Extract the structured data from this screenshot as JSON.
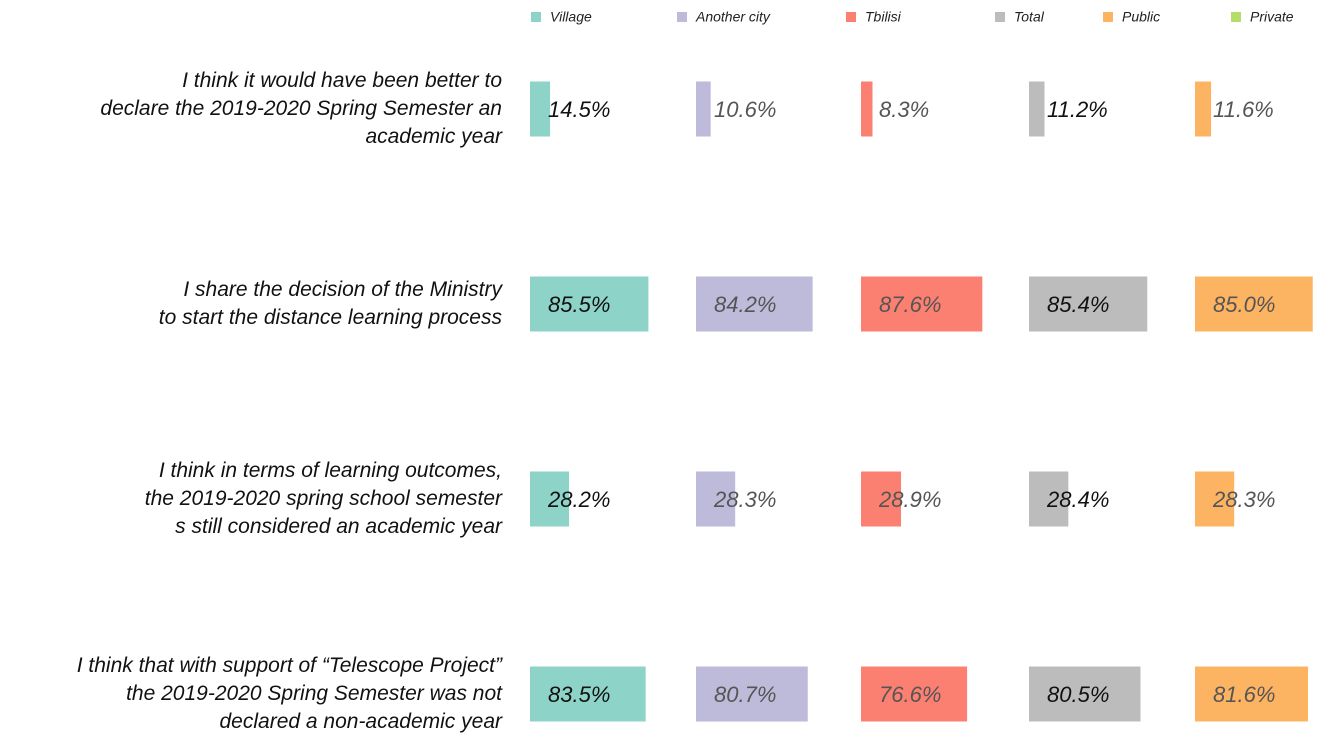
{
  "chart_data": {
    "type": "bar",
    "categories": [
      "I think it would have been better to\ndeclare the 2019-2020 Spring Semester an\nacademic year",
      "I share the decision of the Ministry\nto start the distance learning process",
      "I think in terms of learning outcomes,\nthe 2019-2020 spring school semester\ns still considered an academic year",
      "I think that with support of “Telescope Project”\nthe 2019-2020 Spring Semester was not\ndeclared a non-academic year"
    ],
    "series": [
      {
        "name": "Village",
        "color": "#8dd3c7",
        "values": [
          14.5,
          85.5,
          28.2,
          83.5
        ],
        "value_labels": [
          "14.5%",
          "85.5%",
          "28.2%",
          "83.5%"
        ]
      },
      {
        "name": "Another city",
        "color": "#bebada",
        "values": [
          10.6,
          84.2,
          28.3,
          80.7
        ],
        "value_labels": [
          "10.6%",
          "84.2%",
          "28.3%",
          "80.7%"
        ]
      },
      {
        "name": "Tbilisi",
        "color": "#fb8072",
        "values": [
          8.3,
          87.6,
          28.9,
          76.6
        ],
        "value_labels": [
          "8.3%",
          "87.6%",
          "28.9%",
          "76.6%"
        ]
      },
      {
        "name": "Total",
        "color": "#bcbcbc",
        "values": [
          11.2,
          85.4,
          28.4,
          80.5
        ],
        "value_labels": [
          "11.2%",
          "85.4%",
          "28.4%",
          "80.5%"
        ]
      },
      {
        "name": "Public",
        "color": "#fdb462",
        "values": [
          11.6,
          85.0,
          28.3,
          81.6
        ],
        "value_labels": [
          "11.6%",
          "85.0%",
          "28.3%",
          "81.6%"
        ]
      },
      {
        "name": "Private",
        "color": "#b3de69",
        "values": [
          null,
          null,
          null,
          null
        ]
      }
    ]
  }
}
